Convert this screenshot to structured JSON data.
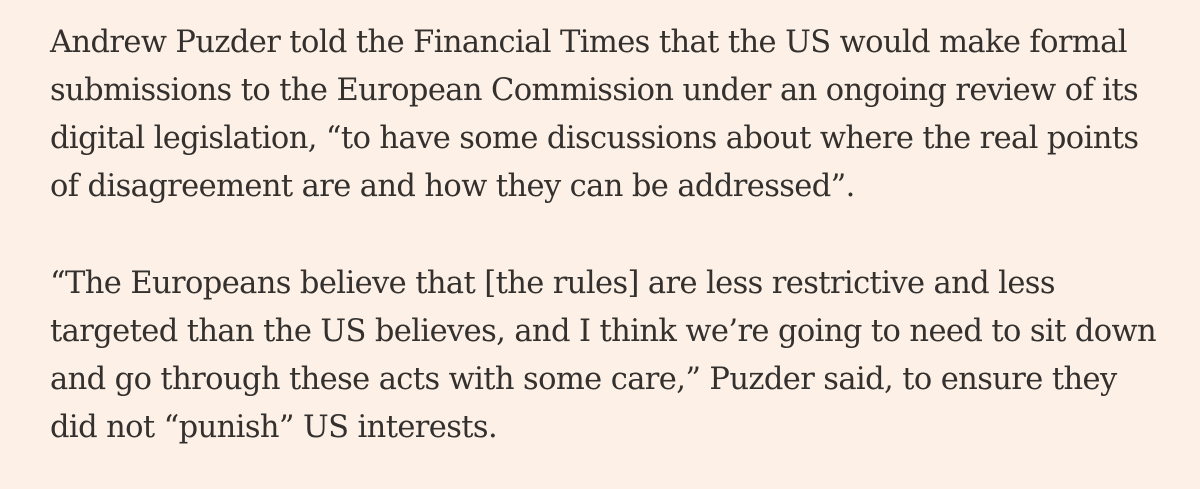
{
  "article": {
    "paragraphs": [
      {
        "text": "Andrew Puzder told the Financial Times that the US would make formal submissions to the European Commission under an ongoing review of its digital legislation, “to have some discussions about where the real points of disagreement are and how they can be addressed”."
      },
      {
        "text": "“The Europeans believe that [the rules] are less restrictive and less targeted than the US believes, and I think we’re going to need to sit down and go through these acts with some care,” Puzder said, to ensure they did not “punish” US interests."
      }
    ]
  }
}
